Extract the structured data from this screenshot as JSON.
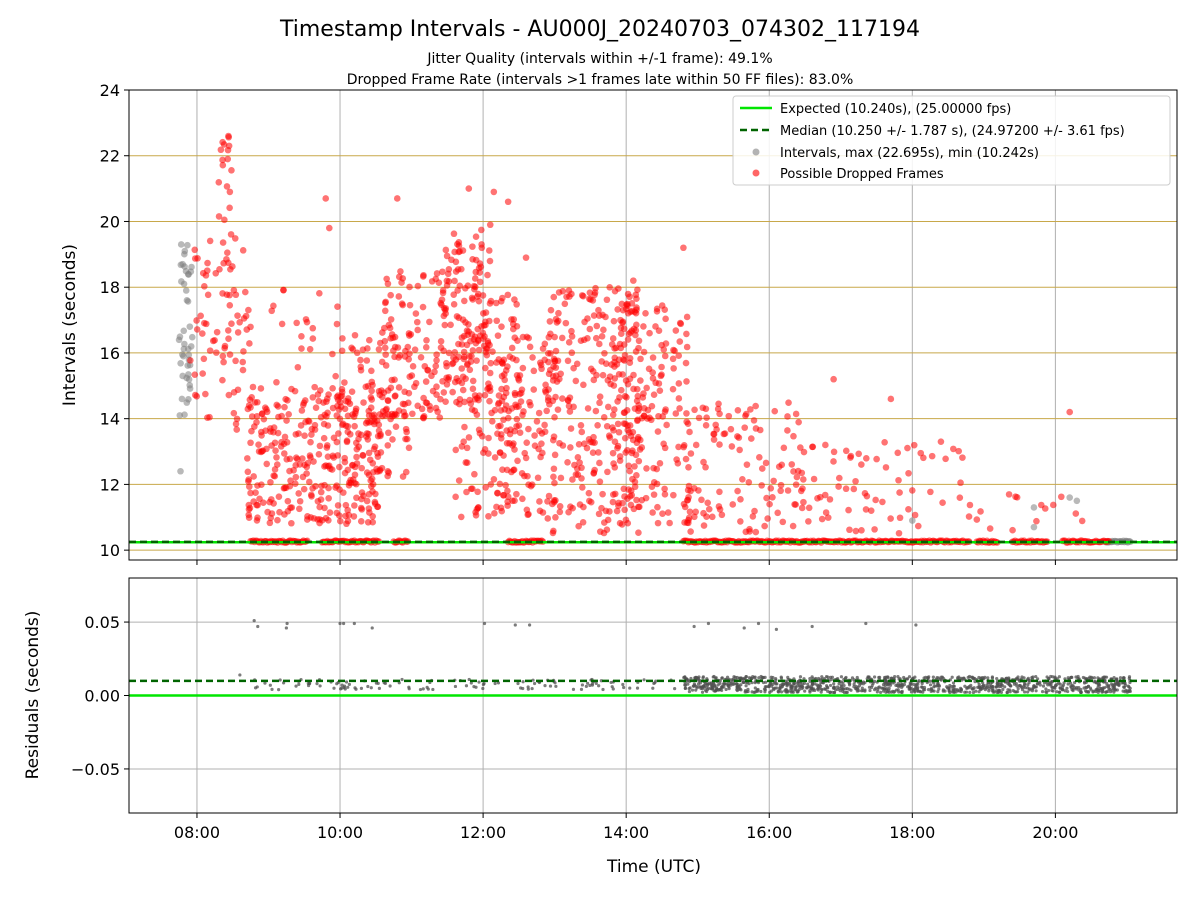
{
  "title": "Timestamp Intervals - AU000J_20240703_074302_117194",
  "subtitle_1": "Jitter Quality (intervals within +/-1 frame): 49.1%",
  "subtitle_2": "Dropped Frame Rate (intervals >1 frames late within 50 FF files): 83.0%",
  "colors": {
    "expected": "#00e600",
    "median": "#006400",
    "intervals": "#808080",
    "dropped": "#ff0000",
    "major_grid": "#c8a84a",
    "grid": "#b0b0b0"
  },
  "chart_data": [
    {
      "type": "scatter",
      "name": "intervals",
      "xlabel": "",
      "ylabel": "Intervals (seconds)",
      "ylim": [
        9.7,
        24
      ],
      "xlim_hours": [
        7.05,
        21.7
      ],
      "yticks": [
        "10",
        "12",
        "14",
        "16",
        "18",
        "20",
        "22",
        "24"
      ],
      "yticks_values": [
        10,
        12,
        14,
        16,
        18,
        20,
        22,
        24
      ],
      "grid": "on",
      "legend_placement": "top-right",
      "legend": [
        "Expected (10.240s), (25.00000 fps)",
        "Median (10.250 +/- 1.787 s), (24.97200 +/- 3.61 fps)",
        "Intervals, max (22.695s), min (10.242s)",
        "Possible Dropped Frames"
      ],
      "expected_interval": 10.24,
      "median_interval": 10.25,
      "max_interval": 22.695,
      "min_interval": 10.242,
      "series": [
        {
          "name": "Intervals, max (22.695s), min (10.242s)",
          "points": [
            [
              7.78,
              19.3
            ],
            [
              7.8,
              18.7
            ],
            [
              7.75,
              16.4
            ],
            [
              7.8,
              15.3
            ],
            [
              7.76,
              14.1
            ],
            [
              7.85,
              17.9
            ],
            [
              7.9,
              16.8
            ],
            [
              7.82,
              18.1
            ],
            [
              7.77,
              12.4
            ],
            [
              7.88,
              18.4
            ],
            [
              7.83,
              19.1
            ],
            [
              7.92,
              16.2
            ],
            [
              7.79,
              14.6
            ],
            [
              7.86,
              17.6
            ],
            [
              7.81,
              15.9
            ],
            [
              18.0,
              10.9
            ],
            [
              19.7,
              11.3
            ],
            [
              19.7,
              10.7
            ],
            [
              20.2,
              11.6
            ],
            [
              20.3,
              11.5
            ],
            [
              21.0,
              10.26
            ],
            [
              20.9,
              10.26
            ]
          ]
        },
        {
          "name": "Possible Dropped Frames",
          "clusters": [
            {
              "x": [
                7.9,
                8.7
              ],
              "y": [
                14.0,
                19.5
              ],
              "n": 60
            },
            {
              "x": [
                8.3,
                8.5
              ],
              "y": [
                18.5,
                22.6
              ],
              "n": 16
            },
            {
              "x": [
                8.5,
                8.8
              ],
              "y": [
                13.5,
                17.5
              ],
              "n": 18
            },
            {
              "x": [
                8.7,
                10.6
              ],
              "y": [
                10.8,
                15.0
              ],
              "n": 320
            },
            {
              "x": [
                9.0,
                10.0
              ],
              "y": [
                15.0,
                18.0
              ],
              "n": 20
            },
            {
              "x": [
                10.0,
                11.0
              ],
              "y": [
                12.0,
                16.8
              ],
              "n": 90
            },
            {
              "x": [
                10.6,
                11.5
              ],
              "y": [
                14.0,
                18.5
              ],
              "n": 110
            },
            {
              "x": [
                11.4,
                12.1
              ],
              "y": [
                14.5,
                19.8
              ],
              "n": 120
            },
            {
              "x": [
                11.6,
                12.5
              ],
              "y": [
                11.0,
                18.0
              ],
              "n": 120
            },
            {
              "x": [
                12.2,
                13.0
              ],
              "y": [
                11.0,
                16.5
              ],
              "n": 130
            },
            {
              "x": [
                12.9,
                14.2
              ],
              "y": [
                10.5,
                18.0
              ],
              "n": 260
            },
            {
              "x": [
                13.8,
                14.9
              ],
              "y": [
                10.8,
                17.5
              ],
              "n": 160
            },
            {
              "x": [
                14.8,
                16.5
              ],
              "y": [
                10.5,
                14.5
              ],
              "n": 110
            },
            {
              "x": [
                16.3,
                18.8
              ],
              "y": [
                10.5,
                13.3
              ],
              "n": 70
            },
            {
              "x": [
                18.8,
                20.7
              ],
              "y": [
                10.5,
                11.8
              ],
              "n": 15
            }
          ],
          "baseline_bands_hours": [
            [
              8.75,
              9.55
            ],
            [
              9.75,
              10.55
            ],
            [
              10.75,
              10.95
            ],
            [
              12.35,
              12.85
            ],
            [
              14.8,
              17.5
            ],
            [
              17.5,
              18.8
            ],
            [
              18.9,
              19.2
            ],
            [
              19.4,
              19.9
            ],
            [
              20.1,
              20.75
            ]
          ],
          "baseline_value": 10.26,
          "points": [
            [
              8.44,
              22.6
            ],
            [
              8.45,
              22.3
            ],
            [
              8.43,
              21.9
            ],
            [
              8.46,
              20.9
            ],
            [
              9.8,
              20.7
            ],
            [
              10.8,
              20.7
            ],
            [
              11.8,
              21.0
            ],
            [
              12.15,
              20.9
            ],
            [
              12.35,
              20.6
            ],
            [
              12.1,
              19.9
            ],
            [
              9.85,
              19.8
            ],
            [
              14.8,
              19.2
            ],
            [
              14.1,
              18.2
            ],
            [
              16.9,
              15.2
            ],
            [
              17.7,
              14.6
            ],
            [
              18.4,
              13.3
            ],
            [
              20.2,
              14.2
            ],
            [
              13.2,
              17.9
            ],
            [
              12.6,
              18.9
            ]
          ]
        }
      ]
    },
    {
      "type": "scatter",
      "name": "residuals",
      "xlabel": "Time (UTC)",
      "ylabel": "Residuals (seconds)",
      "ylim": [
        -0.08,
        0.08
      ],
      "yticks": [
        "−0.05",
        "0.00",
        "0.05"
      ],
      "yticks_values": [
        -0.05,
        0.0,
        0.05
      ],
      "xticks": [
        "08:00",
        "10:00",
        "12:00",
        "14:00",
        "16:00",
        "18:00",
        "20:00"
      ],
      "xticks_hours": [
        8,
        10,
        12,
        14,
        16,
        18,
        20
      ],
      "grid": "on",
      "expected_residual": 0.0,
      "median_residual": 0.01,
      "series": [
        {
          "name": "residuals",
          "outliers": [
            [
              8.8,
              0.051
            ],
            [
              8.85,
              0.047
            ],
            [
              9.25,
              0.046
            ],
            [
              9.26,
              0.049
            ],
            [
              10.0,
              0.049
            ],
            [
              10.05,
              0.049
            ],
            [
              10.2,
              0.049
            ],
            [
              10.45,
              0.046
            ],
            [
              12.02,
              0.049
            ],
            [
              12.45,
              0.048
            ],
            [
              12.65,
              0.048
            ],
            [
              14.95,
              0.047
            ],
            [
              15.15,
              0.049
            ],
            [
              15.65,
              0.046
            ],
            [
              15.85,
              0.049
            ],
            [
              16.1,
              0.045
            ],
            [
              16.6,
              0.047
            ],
            [
              17.35,
              0.049
            ],
            [
              18.05,
              0.048
            ],
            [
              8.6,
              0.014
            ]
          ],
          "sparse": {
            "x": [
              8.8,
              14.7
            ],
            "y": [
              0.004,
              0.011
            ],
            "n": 120
          },
          "dense": {
            "x": [
              14.8,
              21.05
            ],
            "y": [
              0.002,
              0.013
            ],
            "n": 1100
          }
        }
      ]
    }
  ]
}
